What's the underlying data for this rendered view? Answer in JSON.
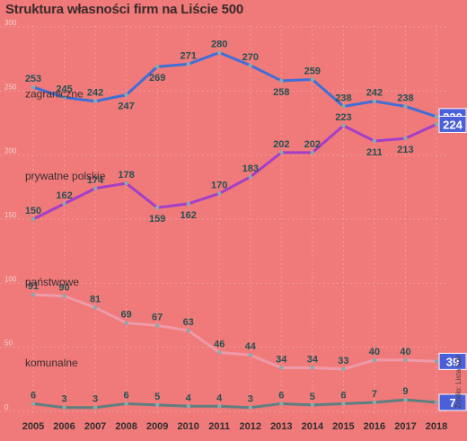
{
  "chart_data": {
    "type": "line",
    "title": "Struktura własności firm na  Liście 500",
    "x": [
      "2005",
      "2006",
      "2007",
      "2008",
      "2009",
      "2010",
      "2011",
      "2012",
      "2013",
      "2014",
      "2015",
      "2016",
      "2017",
      "2018"
    ],
    "yticks": [
      0,
      50,
      100,
      150,
      200,
      250,
      300
    ],
    "ylim": [
      0,
      300
    ],
    "grid": true,
    "series": [
      {
        "name": "zagraniczne",
        "values": [
          253,
          245,
          242,
          247,
          269,
          271,
          280,
          270,
          258,
          259,
          238,
          242,
          238,
          230
        ],
        "last_label": "230",
        "color": "#3f6fd6",
        "label_pos": [
          "above",
          "above",
          "above",
          "below",
          "below",
          "above",
          "above",
          "above",
          "below",
          "above",
          "above",
          "above",
          "above",
          "box"
        ]
      },
      {
        "name": "prywatne polskie",
        "values": [
          150,
          162,
          174,
          178,
          159,
          162,
          170,
          183,
          202,
          202,
          223,
          211,
          213,
          224
        ],
        "last_label": "224",
        "color": "#a33ec9",
        "label_pos": [
          "above",
          "above",
          "above",
          "above",
          "below",
          "below",
          "above",
          "above",
          "above",
          "above",
          "above",
          "below",
          "below",
          "box"
        ]
      },
      {
        "name": "państwowe",
        "values": [
          91,
          90,
          81,
          69,
          67,
          63,
          46,
          44,
          34,
          34,
          33,
          40,
          40,
          39
        ],
        "last_label": "39",
        "color": "#ef9aa8",
        "label_pos": [
          "above",
          "above",
          "above",
          "above",
          "above",
          "above",
          "above",
          "above",
          "above",
          "above",
          "above",
          "above",
          "above",
          "box"
        ]
      },
      {
        "name": "komunalne",
        "values": [
          6,
          3,
          3,
          6,
          5,
          4,
          4,
          3,
          6,
          5,
          6,
          7,
          9,
          7
        ],
        "last_label": "7",
        "color": "#5e7f7f",
        "label_pos": [
          "above",
          "above",
          "above",
          "above",
          "above",
          "above",
          "above",
          "above",
          "above",
          "above",
          "above",
          "above",
          "above",
          "box"
        ]
      }
    ],
    "source": "Źródło: Lista 500"
  }
}
